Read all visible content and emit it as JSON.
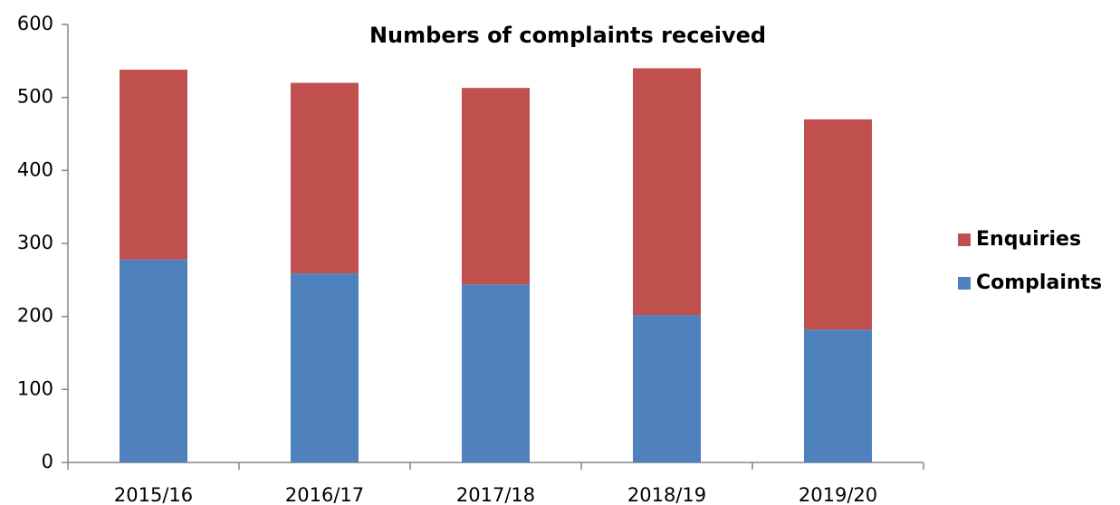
{
  "chart_data": {
    "type": "stacked_bar",
    "title": "Numbers of complaints received",
    "categories": [
      "2015/16",
      "2016/17",
      "2017/18",
      "2018/19",
      "2019/20"
    ],
    "series": [
      {
        "name": "Complaints",
        "color": "#4f81bd",
        "values": [
          278,
          259,
          244,
          202,
          182
        ]
      },
      {
        "name": "Enquiries",
        "color": "#c0504d",
        "values": [
          260,
          261,
          269,
          338,
          288
        ]
      }
    ],
    "ylim": [
      0,
      600
    ],
    "yticks": [
      0,
      100,
      200,
      300,
      400,
      500,
      600
    ],
    "grid": false,
    "legend": "right"
  }
}
